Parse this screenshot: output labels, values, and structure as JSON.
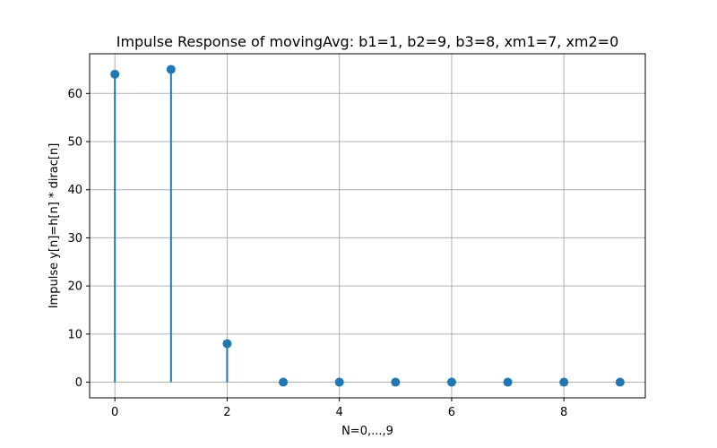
{
  "chart_data": {
    "type": "stem",
    "title": "Impulse Response of movingAvg: b1=1, b2=9, b3=8, xm1=7, xm2=0",
    "xlabel": "N=0,...,9",
    "ylabel": "Impulse y[n]=h[n] * dirac[n]",
    "x": [
      0,
      1,
      2,
      3,
      4,
      5,
      6,
      7,
      8,
      9
    ],
    "values": [
      64,
      65,
      8,
      0,
      0,
      0,
      0,
      0,
      0,
      0
    ],
    "xlim": [
      -0.45,
      9.45
    ],
    "ylim": [
      -3.25,
      68.25
    ],
    "xticks": [
      "0",
      "2",
      "4",
      "6",
      "8"
    ],
    "yticks": [
      "0",
      "10",
      "20",
      "30",
      "40",
      "50",
      "60"
    ],
    "grid": true,
    "colors": {
      "stem": "#1f77b4",
      "grid": "#b0b0b0",
      "axis": "#000000"
    }
  }
}
